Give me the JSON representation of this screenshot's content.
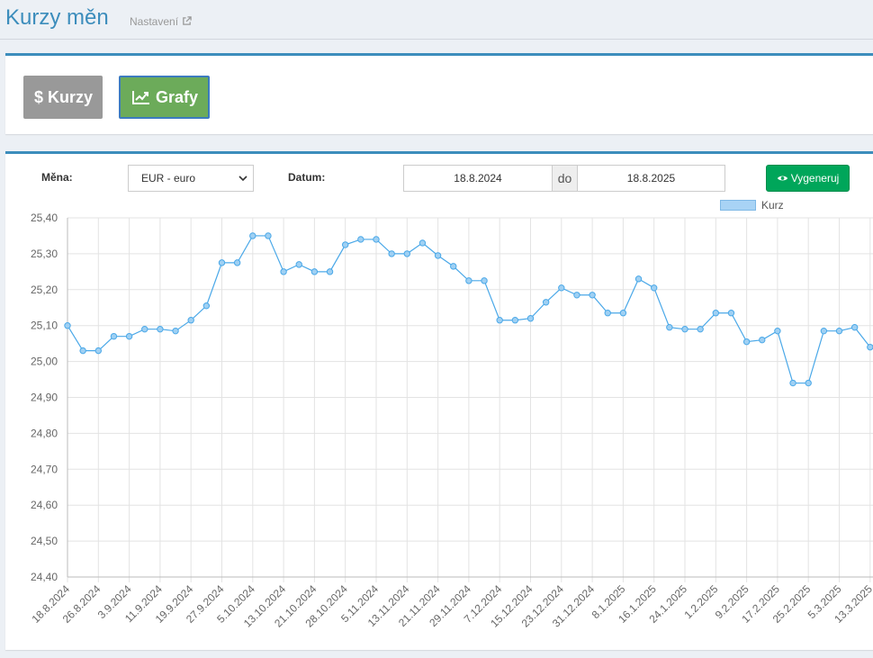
{
  "header": {
    "title": "Kurzy měn",
    "settings_label": "Nastavení"
  },
  "nav": {
    "kurzy_label": "Kurzy",
    "grafy_label": "Grafy"
  },
  "filters": {
    "currency_label": "Měna:",
    "currency_value": "EUR - euro",
    "date_label": "Datum:",
    "date_from": "18.8.2024",
    "date_separator": "do",
    "date_to": "18.8.2025",
    "generate_label": "Vygeneruj"
  },
  "colors": {
    "accent": "#3c8dbc",
    "line": "#4aa8e8",
    "generate": "#00a65a",
    "grafy": "#6cab5a",
    "kurzy": "#999999"
  },
  "chart_data": {
    "type": "line",
    "series": [
      {
        "name": "Kurz",
        "x": [
          "18.8.2024",
          "22.8.2024",
          "26.8.2024",
          "30.8.2024",
          "3.9.2024",
          "7.9.2024",
          "11.9.2024",
          "15.9.2024",
          "19.9.2024",
          "23.9.2024",
          "27.9.2024",
          "1.10.2024",
          "5.10.2024",
          "9.10.2024",
          "13.10.2024",
          "17.10.2024",
          "21.10.2024",
          "24.10.2024",
          "28.10.2024",
          "1.11.2024",
          "5.11.2024",
          "9.11.2024",
          "13.11.2024",
          "17.11.2024",
          "21.11.2024",
          "25.11.2024",
          "29.11.2024",
          "3.12.2024",
          "7.12.2024",
          "11.12.2024",
          "15.12.2024",
          "19.12.2024",
          "23.12.2024",
          "27.12.2024",
          "31.12.2024",
          "4.1.2025",
          "8.1.2025",
          "12.1.2025",
          "16.1.2025",
          "20.1.2025",
          "24.1.2025",
          "28.1.2025",
          "1.2.2025",
          "5.2.2025",
          "9.2.2025",
          "13.2.2025",
          "17.2.2025",
          "21.2.2025",
          "25.2.2025",
          "1.3.2025",
          "5.3.2025",
          "9.3.2025",
          "13.3.2025"
        ],
        "values": [
          25.1,
          25.03,
          25.03,
          25.07,
          25.07,
          25.09,
          25.09,
          25.085,
          25.115,
          25.155,
          25.275,
          25.275,
          25.35,
          25.35,
          25.25,
          25.27,
          25.25,
          25.25,
          25.325,
          25.34,
          25.34,
          25.3,
          25.3,
          25.33,
          25.295,
          25.265,
          25.225,
          25.225,
          25.115,
          25.115,
          25.12,
          25.165,
          25.205,
          25.185,
          25.185,
          25.135,
          25.135,
          25.23,
          25.205,
          25.095,
          25.09,
          25.09,
          25.135,
          25.135,
          25.055,
          25.06,
          25.085,
          24.94,
          24.94,
          25.085,
          25.085,
          25.095,
          25.04
        ]
      }
    ],
    "x_tick_labels": [
      "18.8.2024",
      "26.8.2024",
      "3.9.2024",
      "11.9.2024",
      "19.9.2024",
      "27.9.2024",
      "5.10.2024",
      "13.10.2024",
      "21.10.2024",
      "28.10.2024",
      "5.11.2024",
      "13.11.2024",
      "21.11.2024",
      "29.11.2024",
      "7.12.2024",
      "15.12.2024",
      "23.12.2024",
      "31.12.2024",
      "8.1.2025",
      "16.1.2025",
      "24.1.2025",
      "1.2.2025",
      "9.2.2025",
      "17.2.2025",
      "25.2.2025",
      "5.3.2025",
      "13.3.2025"
    ],
    "y_tick_labels": [
      "25,40",
      "25,30",
      "25,20",
      "25,10",
      "25,00",
      "24,90",
      "24,80",
      "24,70",
      "24,60",
      "24,50",
      "24,40"
    ],
    "ylim": [
      24.4,
      25.4
    ],
    "grid": true,
    "legend": "top-right"
  }
}
